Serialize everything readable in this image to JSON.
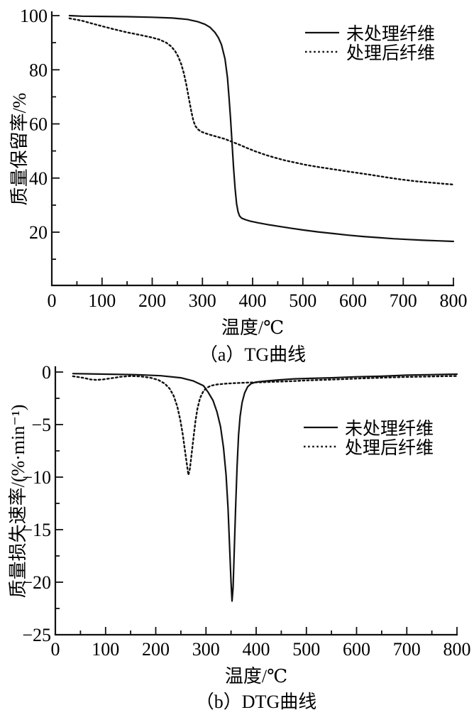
{
  "colors": {
    "line": "#111111",
    "text": "#000000",
    "background": "#ffffff"
  },
  "chart_data": [
    {
      "id": "tg",
      "type": "line",
      "caption": "（a）TG曲线",
      "xlabel": "温度/℃",
      "ylabel": "质量保留率/%",
      "xlim": [
        0,
        800
      ],
      "ylim": [
        0,
        100
      ],
      "grid": false,
      "legend_position": "upper-right",
      "xticks_major": [
        0,
        100,
        200,
        300,
        400,
        500,
        600,
        700,
        800
      ],
      "xticks_minor": [
        50,
        150,
        250,
        350,
        450,
        550,
        650,
        750
      ],
      "yticks_major": [
        20,
        40,
        60,
        80,
        100
      ],
      "yticks_minor": [
        10,
        30,
        50,
        70,
        90
      ],
      "legend": [
        {
          "label": "未处理纤维",
          "style": "solid"
        },
        {
          "label": "处理后纤维",
          "style": "dotted"
        }
      ],
      "series": [
        {
          "name": "未处理纤维",
          "style": "solid",
          "points": [
            [
              35,
              100
            ],
            [
              60,
              99.8
            ],
            [
              100,
              99.7
            ],
            [
              150,
              99.6
            ],
            [
              200,
              99.4
            ],
            [
              240,
              99.1
            ],
            [
              270,
              98.6
            ],
            [
              290,
              97.8
            ],
            [
              305,
              96.8
            ],
            [
              315,
              95.7
            ],
            [
              325,
              93.8
            ],
            [
              332,
              91.8
            ],
            [
              338,
              89.3
            ],
            [
              345,
              84
            ],
            [
              350,
              77
            ],
            [
              353,
              70
            ],
            [
              356,
              62
            ],
            [
              359,
              53
            ],
            [
              362,
              44
            ],
            [
              365,
              36.5
            ],
            [
              368,
              30.5
            ],
            [
              371,
              27.5
            ],
            [
              374,
              26
            ],
            [
              378,
              25.2
            ],
            [
              386,
              24.6
            ],
            [
              395,
              24.1
            ],
            [
              410,
              23.5
            ],
            [
              430,
              22.8
            ],
            [
              450,
              22.2
            ],
            [
              475,
              21.5
            ],
            [
              500,
              20.8
            ],
            [
              530,
              20.1
            ],
            [
              560,
              19.5
            ],
            [
              590,
              18.9
            ],
            [
              620,
              18.4
            ],
            [
              650,
              18
            ],
            [
              680,
              17.6
            ],
            [
              710,
              17.3
            ],
            [
              740,
              17
            ],
            [
              770,
              16.8
            ],
            [
              800,
              16.6
            ]
          ]
        },
        {
          "name": "处理后纤维",
          "style": "dotted",
          "points": [
            [
              35,
              99
            ],
            [
              60,
              98.1
            ],
            [
              80,
              97.1
            ],
            [
              100,
              96.1
            ],
            [
              125,
              94.9
            ],
            [
              150,
              93.8
            ],
            [
              175,
              92.9
            ],
            [
              200,
              91.9
            ],
            [
              215,
              91.1
            ],
            [
              228,
              90
            ],
            [
              238,
              88.6
            ],
            [
              246,
              86.8
            ],
            [
              252,
              84.8
            ],
            [
              258,
              82
            ],
            [
              263,
              78.7
            ],
            [
              268,
              74.5
            ],
            [
              273,
              69.5
            ],
            [
              278,
              64.5
            ],
            [
              282,
              61.2
            ],
            [
              286,
              59.2
            ],
            [
              291,
              58
            ],
            [
              297,
              57.2
            ],
            [
              305,
              56.6
            ],
            [
              315,
              56
            ],
            [
              330,
              55.2
            ],
            [
              345,
              54.4
            ],
            [
              360,
              53.3
            ],
            [
              375,
              52.2
            ],
            [
              390,
              51
            ],
            [
              405,
              49.9
            ],
            [
              425,
              48.6
            ],
            [
              445,
              47.5
            ],
            [
              465,
              46.5
            ],
            [
              485,
              45.7
            ],
            [
              505,
              44.9
            ],
            [
              530,
              44.1
            ],
            [
              555,
              43.4
            ],
            [
              580,
              42.7
            ],
            [
              605,
              42
            ],
            [
              635,
              41.2
            ],
            [
              665,
              40.3
            ],
            [
              695,
              39.5
            ],
            [
              725,
              38.8
            ],
            [
              755,
              38.3
            ],
            [
              785,
              37.8
            ],
            [
              800,
              37.6
            ]
          ]
        }
      ]
    },
    {
      "id": "dtg",
      "type": "line",
      "caption": "（b）DTG曲线",
      "xlabel": "温度/℃",
      "ylabel": "质量损失速率/(%·min⁻¹)",
      "xlim": [
        0,
        800
      ],
      "ylim": [
        -25,
        0
      ],
      "grid": false,
      "legend_position": "middle-right",
      "xticks_major": [
        0,
        100,
        200,
        300,
        400,
        500,
        600,
        700,
        800
      ],
      "xticks_minor": [
        50,
        150,
        250,
        350,
        450,
        550,
        650,
        750
      ],
      "yticks_major": [
        0,
        -5,
        -10,
        -15,
        -20,
        -25
      ],
      "yticks_minor": [
        -2.5,
        -7.5,
        -12.5,
        -17.5,
        -22.5
      ],
      "legend": [
        {
          "label": "未处理纤维",
          "style": "solid"
        },
        {
          "label": "处理后纤维",
          "style": "dotted"
        }
      ],
      "series": [
        {
          "name": "未处理纤维",
          "style": "solid",
          "points": [
            [
              35,
              -0.15
            ],
            [
              100,
              -0.2
            ],
            [
              160,
              -0.25
            ],
            [
              210,
              -0.35
            ],
            [
              250,
              -0.55
            ],
            [
              275,
              -0.85
            ],
            [
              295,
              -1.3
            ],
            [
              304,
              -1.9
            ],
            [
              314,
              -2.7
            ],
            [
              322,
              -3.8
            ],
            [
              329,
              -5.2
            ],
            [
              335,
              -7.2
            ],
            [
              340,
              -9.8
            ],
            [
              344,
              -13
            ],
            [
              347,
              -16.5
            ],
            [
              350,
              -20
            ],
            [
              352,
              -21.8
            ],
            [
              354,
              -20.5
            ],
            [
              356,
              -17.5
            ],
            [
              359,
              -13
            ],
            [
              362,
              -9
            ],
            [
              365,
              -6
            ],
            [
              368,
              -4.2
            ],
            [
              372,
              -2.9
            ],
            [
              377,
              -2
            ],
            [
              383,
              -1.4
            ],
            [
              390,
              -1.1
            ],
            [
              400,
              -0.95
            ],
            [
              420,
              -0.85
            ],
            [
              445,
              -0.75
            ],
            [
              475,
              -0.65
            ],
            [
              510,
              -0.6
            ],
            [
              550,
              -0.55
            ],
            [
              600,
              -0.45
            ],
            [
              650,
              -0.4
            ],
            [
              700,
              -0.3
            ],
            [
              750,
              -0.25
            ],
            [
              800,
              -0.2
            ]
          ]
        },
        {
          "name": "处理后纤维",
          "style": "dotted",
          "points": [
            [
              35,
              -0.4
            ],
            [
              55,
              -0.55
            ],
            [
              70,
              -0.7
            ],
            [
              82,
              -0.75
            ],
            [
              95,
              -0.7
            ],
            [
              110,
              -0.6
            ],
            [
              130,
              -0.45
            ],
            [
              150,
              -0.38
            ],
            [
              170,
              -0.42
            ],
            [
              190,
              -0.55
            ],
            [
              205,
              -0.75
            ],
            [
              218,
              -1.1
            ],
            [
              228,
              -1.6
            ],
            [
              236,
              -2.3
            ],
            [
              243,
              -3.3
            ],
            [
              249,
              -4.6
            ],
            [
              254,
              -6
            ],
            [
              258,
              -7.4
            ],
            [
              262,
              -8.8
            ],
            [
              265,
              -9.8
            ],
            [
              268,
              -9.2
            ],
            [
              271,
              -8
            ],
            [
              275,
              -6.3
            ],
            [
              279,
              -4.7
            ],
            [
              283,
              -3.5
            ],
            [
              288,
              -2.5
            ],
            [
              294,
              -1.9
            ],
            [
              300,
              -1.55
            ],
            [
              310,
              -1.3
            ],
            [
              322,
              -1.18
            ],
            [
              340,
              -1.1
            ],
            [
              360,
              -1.05
            ],
            [
              385,
              -1
            ],
            [
              410,
              -0.97
            ],
            [
              440,
              -0.92
            ],
            [
              470,
              -0.87
            ],
            [
              500,
              -0.8
            ],
            [
              535,
              -0.74
            ],
            [
              570,
              -0.68
            ],
            [
              610,
              -0.6
            ],
            [
              650,
              -0.54
            ],
            [
              690,
              -0.48
            ],
            [
              730,
              -0.44
            ],
            [
              770,
              -0.4
            ],
            [
              800,
              -0.38
            ]
          ]
        }
      ]
    }
  ]
}
